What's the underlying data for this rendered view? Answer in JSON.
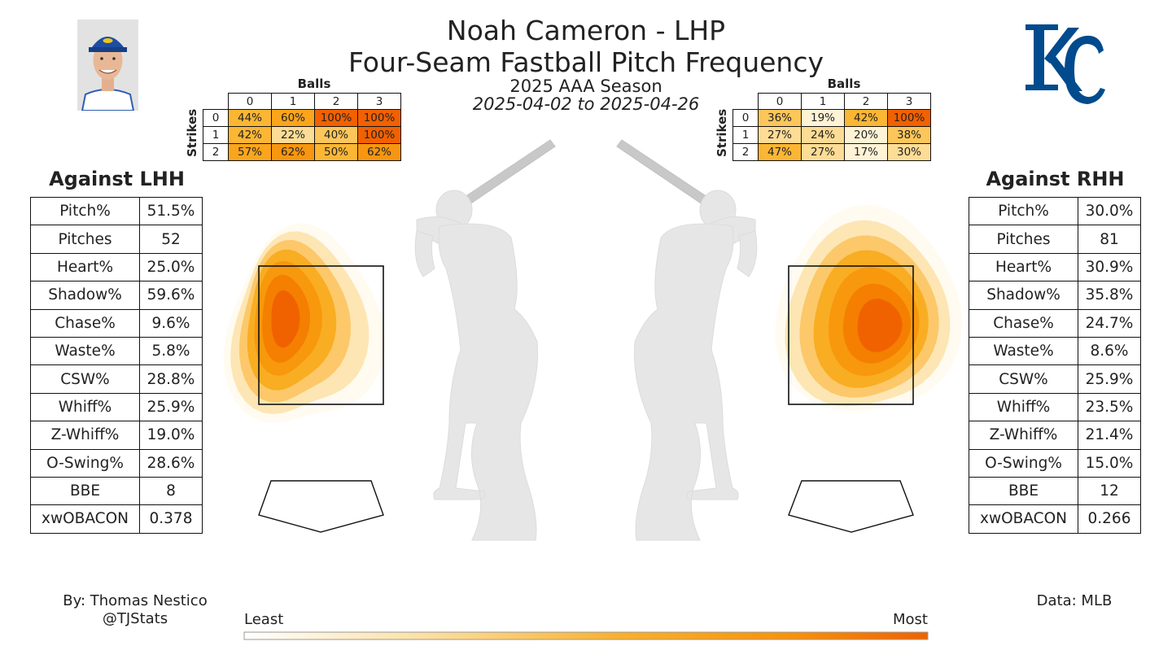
{
  "header": {
    "pitcher": "Noah Cameron - LHP",
    "pitch_title": "Four-Seam Fastball Pitch Frequency",
    "season": "2025 AAA Season",
    "date_range": "2025-04-02 to 2025-04-26"
  },
  "colors": {
    "scale": [
      "#fffbf0",
      "#fde6b4",
      "#fcc86a",
      "#f9ad22",
      "#f8980d",
      "#f57f00",
      "#f06200"
    ],
    "logo_blue": "#004b8d"
  },
  "chart_data": [
    {
      "type": "table",
      "name": "count_frequency_lhh",
      "col_header": "Balls",
      "row_header": "Strikes",
      "columns": [
        "0",
        "1",
        "2",
        "3"
      ],
      "rows": [
        "0",
        "1",
        "2"
      ],
      "cells": [
        [
          "44%",
          "60%",
          "100%",
          "100%"
        ],
        [
          "42%",
          "22%",
          "40%",
          "100%"
        ],
        [
          "57%",
          "62%",
          "50%",
          "62%"
        ]
      ],
      "values": [
        [
          44,
          60,
          100,
          100
        ],
        [
          42,
          22,
          40,
          100
        ],
        [
          57,
          62,
          50,
          62
        ]
      ]
    },
    {
      "type": "table",
      "name": "count_frequency_rhh",
      "col_header": "Balls",
      "row_header": "Strikes",
      "columns": [
        "0",
        "1",
        "2",
        "3"
      ],
      "rows": [
        "0",
        "1",
        "2"
      ],
      "cells": [
        [
          "36%",
          "19%",
          "42%",
          "100%"
        ],
        [
          "27%",
          "24%",
          "20%",
          "38%"
        ],
        [
          "47%",
          "27%",
          "17%",
          "30%"
        ]
      ],
      "values": [
        [
          36,
          19,
          42,
          100
        ],
        [
          27,
          24,
          20,
          38
        ],
        [
          47,
          27,
          17,
          30
        ]
      ]
    },
    {
      "type": "table",
      "name": "stats_lhh",
      "title": "Against LHH",
      "rows": [
        [
          "Pitch%",
          "51.5%"
        ],
        [
          "Pitches",
          "52"
        ],
        [
          "Heart%",
          "25.0%"
        ],
        [
          "Shadow%",
          "59.6%"
        ],
        [
          "Chase%",
          "9.6%"
        ],
        [
          "Waste%",
          "5.8%"
        ],
        [
          "CSW%",
          "28.8%"
        ],
        [
          "Whiff%",
          "25.9%"
        ],
        [
          "Z-Whiff%",
          "19.0%"
        ],
        [
          "O-Swing%",
          "28.6%"
        ],
        [
          "BBE",
          "8"
        ],
        [
          "xwOBACON",
          "0.378"
        ]
      ]
    },
    {
      "type": "table",
      "name": "stats_rhh",
      "title": "Against RHH",
      "rows": [
        [
          "Pitch%",
          "30.0%"
        ],
        [
          "Pitches",
          "81"
        ],
        [
          "Heart%",
          "30.9%"
        ],
        [
          "Shadow%",
          "35.8%"
        ],
        [
          "Chase%",
          "24.7%"
        ],
        [
          "Waste%",
          "8.6%"
        ],
        [
          "CSW%",
          "25.9%"
        ],
        [
          "Whiff%",
          "23.5%"
        ],
        [
          "Z-Whiff%",
          "21.4%"
        ],
        [
          "O-Swing%",
          "15.0%"
        ],
        [
          "BBE",
          "12"
        ],
        [
          "xwOBACON",
          "0.266"
        ]
      ]
    },
    {
      "type": "heatmap",
      "name": "pitch_location_density",
      "panels": [
        "Against LHH",
        "Against RHH"
      ],
      "colorbar": {
        "min_label": "Least",
        "max_label": "Most"
      }
    }
  ],
  "footer": {
    "credit_line1": "By: Thomas Nestico",
    "credit_line2": "@TJStats",
    "data_source": "Data: MLB"
  }
}
